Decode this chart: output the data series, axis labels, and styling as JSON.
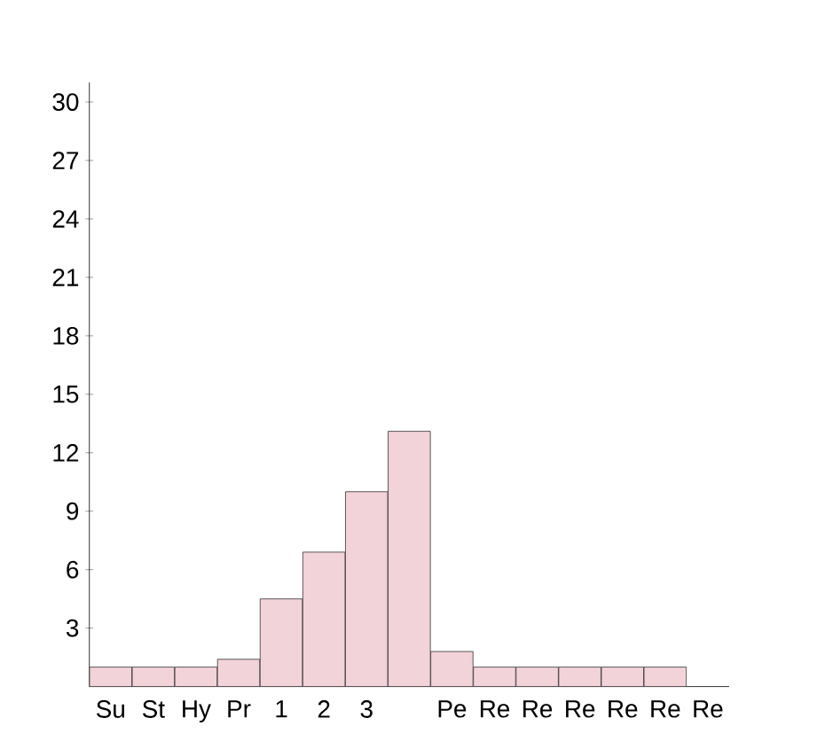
{
  "chart_data": {
    "type": "bar",
    "categories": [
      "Su",
      "St",
      "Hy",
      "Pr",
      "1",
      "2",
      "3",
      null,
      "Pe",
      "Re",
      "Re",
      "Re",
      "Re",
      "Re",
      "Re"
    ],
    "values": [
      1,
      1,
      1,
      1.4,
      4.5,
      6.9,
      10,
      13.1,
      1.8,
      1,
      1,
      1,
      1,
      1,
      null
    ],
    "color": "#f2d3da",
    "ylim": [
      0,
      31
    ],
    "yticks": [
      3,
      6,
      9,
      12,
      15,
      18,
      21,
      24,
      27,
      30
    ]
  }
}
